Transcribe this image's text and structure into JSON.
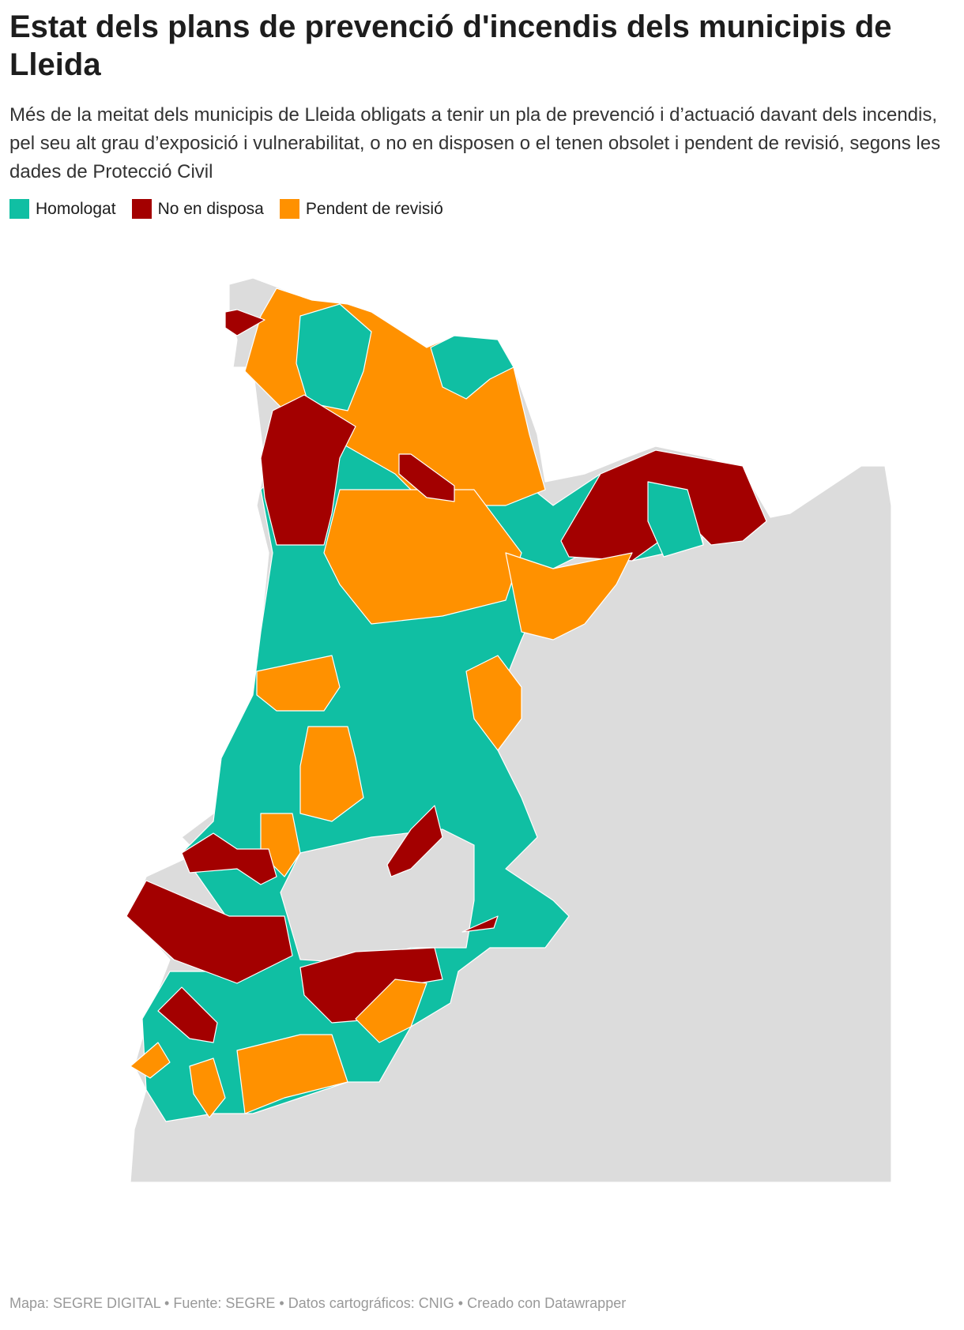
{
  "header": {
    "title": "Estat dels plans de prevenció d'incendis dels municipis de Lleida",
    "subtitle": "Més de la meitat dels municipis de Lleida obligats a tenir un pla de prevenció i d’actuació davant dels incendis, pel seu alt grau d’exposició i vulnerabilitat, o no en disposen o el tenen obsolet i pendent de revisió, segons les dades de Protecció Civil"
  },
  "legend": [
    {
      "label": "Homologat",
      "color": "#10bfa3"
    },
    {
      "label": "No en disposa",
      "color": "#a30000"
    },
    {
      "label": "Pendent de revisió",
      "color": "#ff9100"
    }
  ],
  "footer": {
    "text": "Mapa: SEGRE DIGITAL • Fuente: SEGRE • Datos cartográficos: CNIG  • Creado con Datawrapper"
  }
}
